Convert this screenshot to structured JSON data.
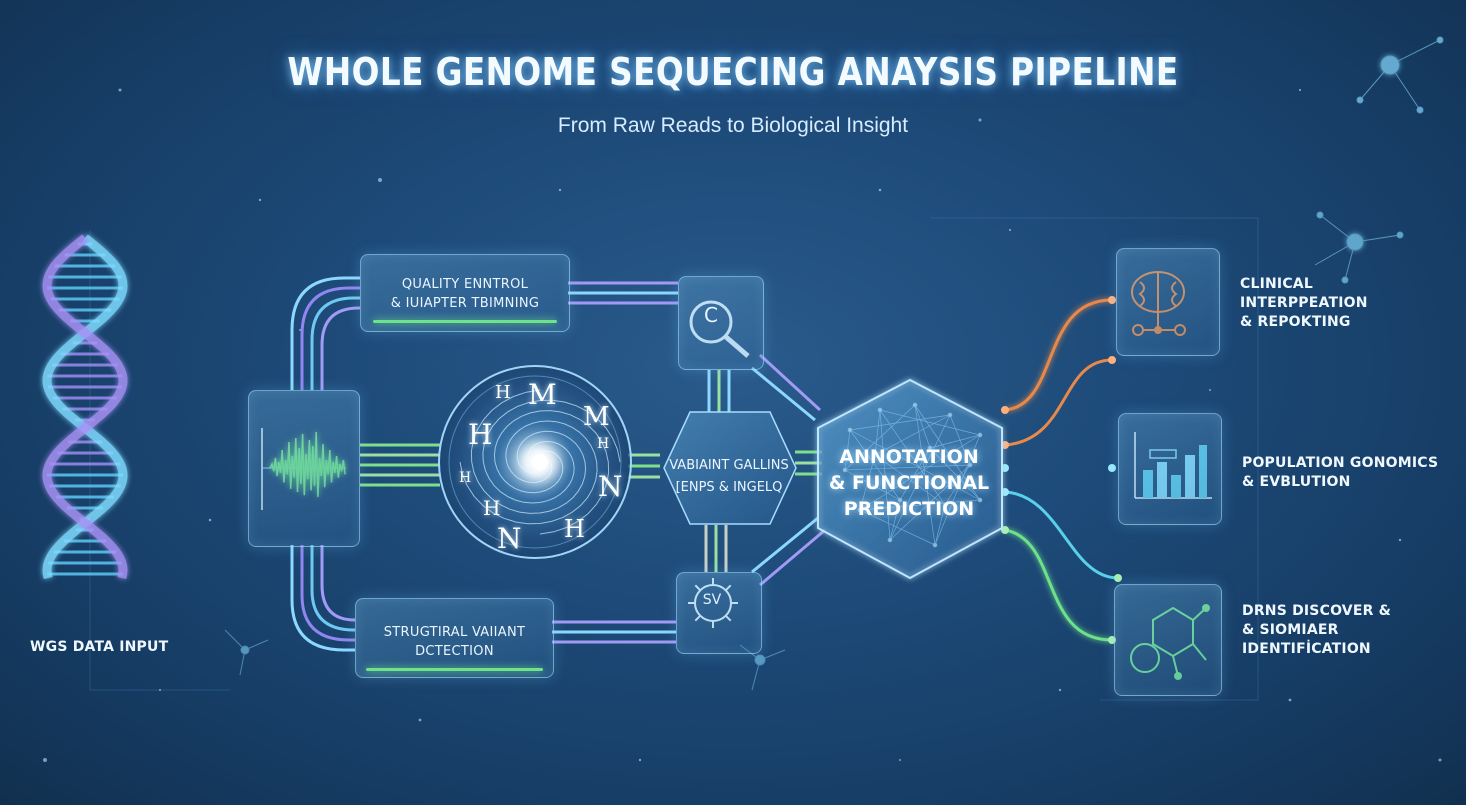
{
  "title": "WHOLE GENOME SEQUECING ANAYSIS PIPELINE",
  "subtitle": "From Raw Reads to Biological Insight",
  "input": {
    "label": "WGS DATA INPUT"
  },
  "quality_control": {
    "line1": "QUALITY ENNTROL",
    "line2": "& IUIAPTER TBIMNING"
  },
  "structural": {
    "line1": "STRUGTIRAL VAIIANT",
    "line2": "DCTECTION"
  },
  "variant_calling": {
    "line1": "VABIAINT GALLINS",
    "line2": "[ENPS & INGELQ"
  },
  "annotation": {
    "line1": "ANNOTATION",
    "line2": "& FUNCTIONAL",
    "line3": "PREDICTION"
  },
  "magnifier_letter": "C",
  "sv_letters": "SV",
  "alignment_glyphs": [
    "H",
    "M",
    "M",
    "H",
    "N",
    "H",
    "H",
    "H",
    "N",
    "H"
  ],
  "outputs": [
    {
      "line1": "CLINICAL",
      "line2": "INTERPPEATION",
      "line3": "& REPOKTING",
      "accent": "#e8894a",
      "icon": "brain-icon"
    },
    {
      "line1": "POPULATION GONOMICS",
      "line2": "& EVBLUTION",
      "line3": "",
      "accent": "#58c8e8",
      "icon": "bar-chart-icon"
    },
    {
      "line1": "DRNS DISCOVER &",
      "line2": "& SIOMIAER",
      "line3": "IDENTIFİCATION",
      "accent": "#6ee08a",
      "icon": "molecule-icon"
    }
  ],
  "colors": {
    "background": "#1d4a78",
    "accent_green": "#6fe38a",
    "accent_orange": "#e8894a",
    "accent_cyan": "#58d0ea",
    "accent_purple": "#9b8cf0"
  }
}
